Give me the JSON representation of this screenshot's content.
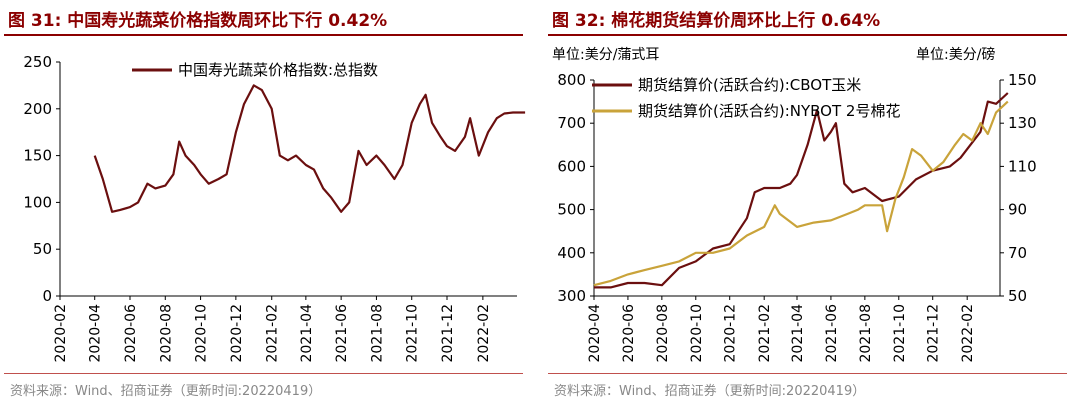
{
  "charts": {
    "left": {
      "figure_title": "图 31:  中国寿光蔬菜价格指数周环比下行 0.42%",
      "source": "资料来源：Wind、招商证券（更新时间:20220419）"
    },
    "right": {
      "figure_title": "图 32:  棉花期货结算价周环比上行 0.64%",
      "unit_left": "单位:美分/蒲式耳",
      "unit_right": "单位:美分/磅",
      "source": "资料来源：Wind、招商证券（更新时间:20220419）"
    }
  },
  "chart_data": [
    {
      "type": "line",
      "title": "中国寿光蔬菜价格指数周环比下行 0.42%",
      "x_tick_labels": [
        "2020-02",
        "2020-04",
        "2020-06",
        "2020-08",
        "2020-10",
        "2020-12",
        "2021-02",
        "2021-04",
        "2021-06",
        "2021-08",
        "2021-10",
        "2021-12",
        "2022-02"
      ],
      "xlim": [
        "2020-02",
        "2022-04"
      ],
      "ylim": [
        0,
        250
      ],
      "y_ticks": [
        0,
        50,
        100,
        150,
        200,
        250
      ],
      "color": "#6b0f0f",
      "series": [
        {
          "name": "中国寿光蔬菜价格指数:总指数",
          "points": [
            [
              "2020-04-01",
              150
            ],
            [
              "2020-04-15",
              125
            ],
            [
              "2020-05-01",
              90
            ],
            [
              "2020-05-15",
              92
            ],
            [
              "2020-06-01",
              95
            ],
            [
              "2020-06-15",
              100
            ],
            [
              "2020-07-01",
              120
            ],
            [
              "2020-07-15",
              115
            ],
            [
              "2020-08-01",
              118
            ],
            [
              "2020-08-15",
              130
            ],
            [
              "2020-08-25",
              165
            ],
            [
              "2020-09-05",
              150
            ],
            [
              "2020-09-20",
              140
            ],
            [
              "2020-10-01",
              130
            ],
            [
              "2020-10-15",
              120
            ],
            [
              "2020-11-01",
              125
            ],
            [
              "2020-11-15",
              130
            ],
            [
              "2020-12-01",
              175
            ],
            [
              "2020-12-15",
              205
            ],
            [
              "2021-01-01",
              225
            ],
            [
              "2021-01-15",
              220
            ],
            [
              "2021-02-01",
              200
            ],
            [
              "2021-02-15",
              150
            ],
            [
              "2021-03-01",
              145
            ],
            [
              "2021-03-15",
              150
            ],
            [
              "2021-04-01",
              140
            ],
            [
              "2021-04-15",
              135
            ],
            [
              "2021-05-01",
              115
            ],
            [
              "2021-05-15",
              105
            ],
            [
              "2021-06-01",
              90
            ],
            [
              "2021-06-15",
              100
            ],
            [
              "2021-07-01",
              155
            ],
            [
              "2021-07-15",
              140
            ],
            [
              "2021-08-01",
              150
            ],
            [
              "2021-08-15",
              140
            ],
            [
              "2021-09-01",
              125
            ],
            [
              "2021-09-15",
              140
            ],
            [
              "2021-10-01",
              185
            ],
            [
              "2021-10-15",
              205
            ],
            [
              "2021-10-25",
              215
            ],
            [
              "2021-11-05",
              185
            ],
            [
              "2021-11-20",
              170
            ],
            [
              "2021-12-01",
              160
            ],
            [
              "2021-12-15",
              155
            ],
            [
              "2022-01-01",
              170
            ],
            [
              "2022-01-10",
              190
            ],
            [
              "2022-01-25",
              150
            ],
            [
              "2022-02-10",
              175
            ],
            [
              "2022-02-25",
              190
            ],
            [
              "2022-03-10",
              195
            ],
            [
              "2022-03-25",
              196
            ],
            [
              "2022-04-15",
              196
            ]
          ]
        }
      ]
    },
    {
      "type": "line",
      "title": "棉花期货结算价周环比上行 0.64%",
      "x_tick_labels": [
        "2020-04",
        "2020-06",
        "2020-08",
        "2020-10",
        "2020-12",
        "2021-02",
        "2021-04",
        "2021-06",
        "2021-08",
        "2021-10",
        "2021-12",
        "2022-02"
      ],
      "xlim": [
        "2020-04",
        "2022-04"
      ],
      "ylim_left": [
        300,
        800
      ],
      "y_ticks_left": [
        300,
        400,
        500,
        600,
        700,
        800
      ],
      "ylim_right": [
        50,
        150
      ],
      "y_ticks_right": [
        50,
        70,
        90,
        110,
        130,
        150
      ],
      "series": [
        {
          "name": "期货结算价(活跃合约):CBOT玉米",
          "axis": "left",
          "color": "#6b0f0f",
          "points": [
            [
              "2020-04-01",
              320
            ],
            [
              "2020-05-01",
              320
            ],
            [
              "2020-06-01",
              330
            ],
            [
              "2020-07-01",
              330
            ],
            [
              "2020-08-01",
              325
            ],
            [
              "2020-09-01",
              365
            ],
            [
              "2020-10-01",
              380
            ],
            [
              "2020-11-01",
              410
            ],
            [
              "2020-12-01",
              420
            ],
            [
              "2021-01-01",
              480
            ],
            [
              "2021-01-15",
              540
            ],
            [
              "2021-02-01",
              550
            ],
            [
              "2021-03-01",
              550
            ],
            [
              "2021-03-20",
              560
            ],
            [
              "2021-04-01",
              580
            ],
            [
              "2021-04-20",
              650
            ],
            [
              "2021-05-07",
              730
            ],
            [
              "2021-05-20",
              660
            ],
            [
              "2021-06-01",
              680
            ],
            [
              "2021-06-10",
              700
            ],
            [
              "2021-06-25",
              560
            ],
            [
              "2021-07-10",
              540
            ],
            [
              "2021-08-01",
              550
            ],
            [
              "2021-09-01",
              520
            ],
            [
              "2021-10-01",
              530
            ],
            [
              "2021-11-01",
              570
            ],
            [
              "2021-12-01",
              590
            ],
            [
              "2022-01-01",
              600
            ],
            [
              "2022-01-20",
              620
            ],
            [
              "2022-02-01",
              640
            ],
            [
              "2022-02-25",
              680
            ],
            [
              "2022-03-10",
              750
            ],
            [
              "2022-03-25",
              745
            ],
            [
              "2022-04-15",
              770
            ]
          ]
        },
        {
          "name": "期货结算价(活跃合约):NYBOT 2号棉花",
          "axis": "right",
          "color": "#c9a33a",
          "points": [
            [
              "2020-04-01",
              55
            ],
            [
              "2020-05-01",
              57
            ],
            [
              "2020-06-01",
              60
            ],
            [
              "2020-07-01",
              62
            ],
            [
              "2020-08-01",
              64
            ],
            [
              "2020-09-01",
              66
            ],
            [
              "2020-10-01",
              70
            ],
            [
              "2020-11-01",
              70
            ],
            [
              "2020-12-01",
              72
            ],
            [
              "2021-01-01",
              78
            ],
            [
              "2021-02-01",
              82
            ],
            [
              "2021-02-20",
              92
            ],
            [
              "2021-03-01",
              88
            ],
            [
              "2021-04-01",
              82
            ],
            [
              "2021-05-01",
              84
            ],
            [
              "2021-06-01",
              85
            ],
            [
              "2021-07-01",
              88
            ],
            [
              "2021-07-20",
              90
            ],
            [
              "2021-08-01",
              92
            ],
            [
              "2021-09-01",
              92
            ],
            [
              "2021-09-10",
              80
            ],
            [
              "2021-09-25",
              95
            ],
            [
              "2021-10-10",
              105
            ],
            [
              "2021-10-25",
              118
            ],
            [
              "2021-11-10",
              115
            ],
            [
              "2021-12-01",
              108
            ],
            [
              "2021-12-20",
              112
            ],
            [
              "2022-01-10",
              120
            ],
            [
              "2022-01-25",
              125
            ],
            [
              "2022-02-10",
              122
            ],
            [
              "2022-02-25",
              130
            ],
            [
              "2022-03-10",
              125
            ],
            [
              "2022-03-25",
              135
            ],
            [
              "2022-04-15",
              140
            ]
          ]
        }
      ]
    }
  ]
}
